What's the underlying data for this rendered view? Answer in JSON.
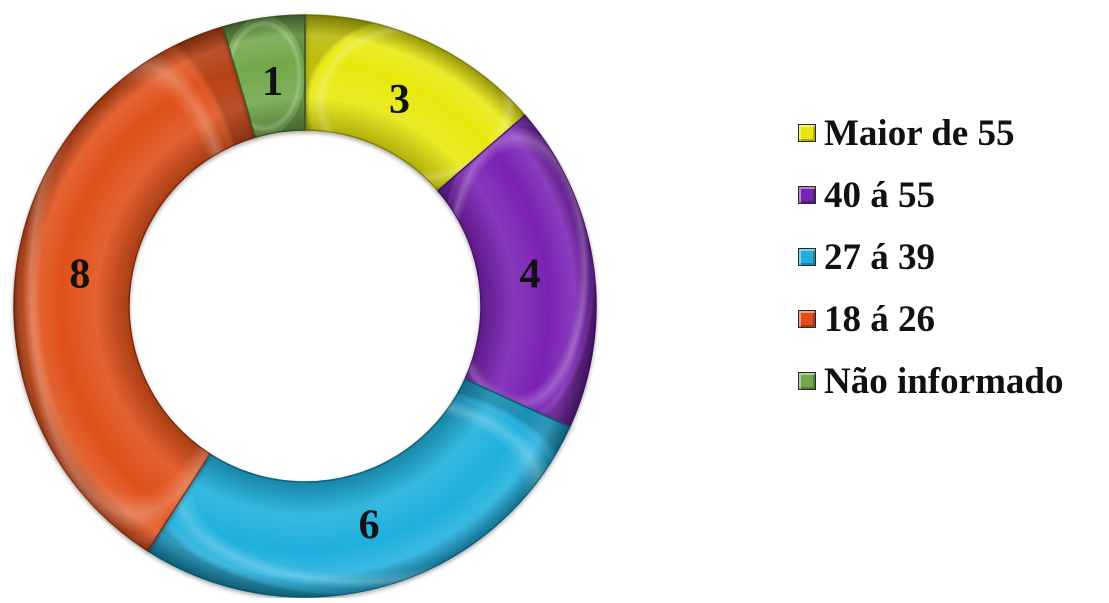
{
  "chart_data": {
    "type": "pie",
    "variant": "donut",
    "categories": [
      "Maior de 55",
      "40 á 55",
      "27 á 39",
      "18 á 26",
      "Não informado"
    ],
    "values": [
      3,
      4,
      6,
      8,
      1
    ],
    "value_labels": [
      "3",
      "4",
      "6",
      "8",
      "1"
    ],
    "colors": [
      "#e8e80e",
      "#7a22b4",
      "#1fb0dd",
      "#e0501a",
      "#72a84a"
    ],
    "legend": {
      "placement": "right",
      "entries": [
        "Maior de 55",
        "40 á 55",
        "27 á 39",
        "18 á 26",
        "Não informado"
      ]
    }
  }
}
